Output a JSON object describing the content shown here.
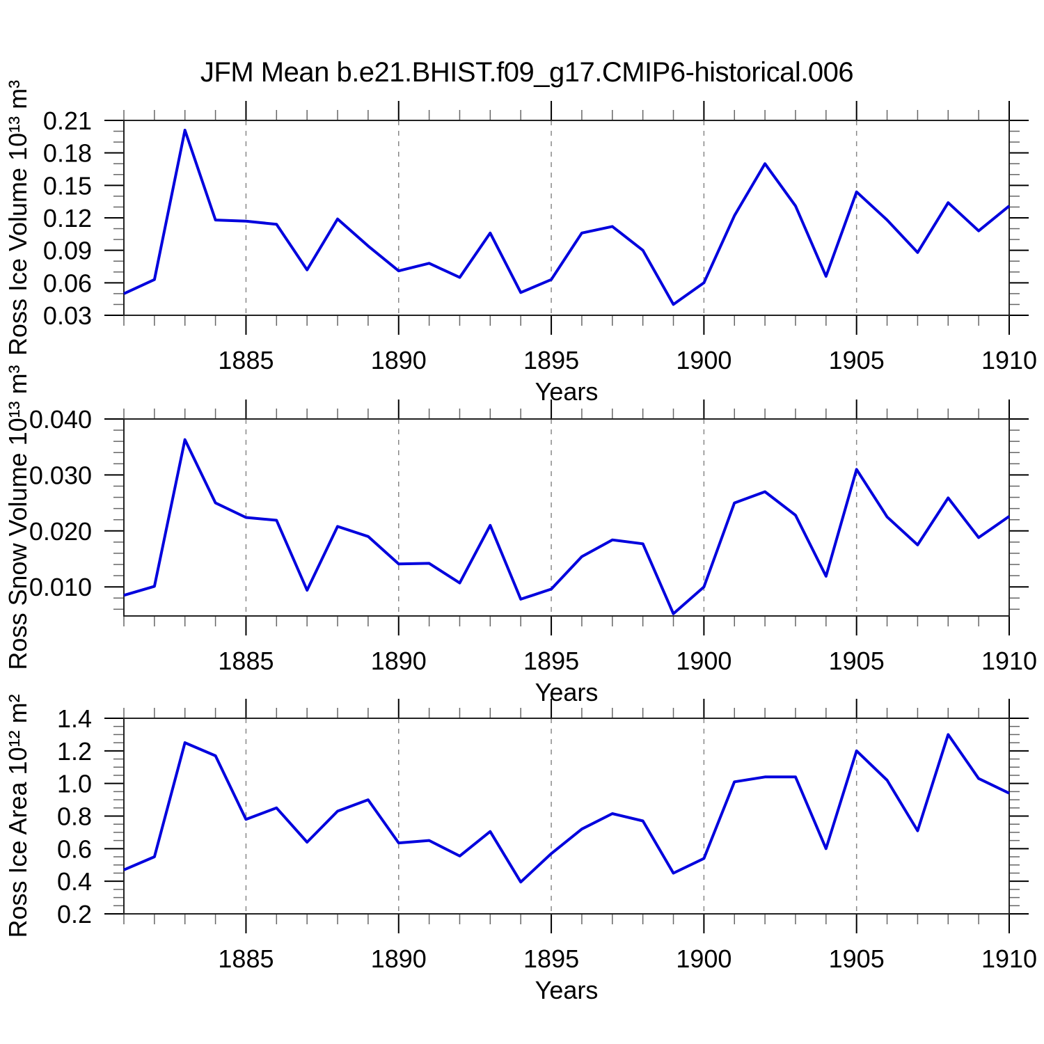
{
  "title": "JFM Mean b.e21.BHIST.f09_g17.CMIP6-historical.006",
  "style": {
    "line_color": "#0000dd",
    "axis_color": "#222222",
    "major_tick_color": "#000000",
    "minor_tick_color": "#666666",
    "grid_color": "#888888",
    "text_color": "#000000"
  },
  "chart_data": [
    {
      "type": "line",
      "name": "ross-ice-volume",
      "ylabel": "Ross Ice Volume 10¹³ m³",
      "xlabel": "Years",
      "legend": "none",
      "grid": "vertical-dashed",
      "x": [
        1881,
        1882,
        1883,
        1884,
        1885,
        1886,
        1887,
        1888,
        1889,
        1890,
        1891,
        1892,
        1893,
        1894,
        1895,
        1896,
        1897,
        1898,
        1899,
        1900,
        1901,
        1902,
        1903,
        1904,
        1905,
        1906,
        1907,
        1908,
        1909,
        1910
      ],
      "values": [
        0.05,
        0.063,
        0.201,
        0.118,
        0.117,
        0.114,
        0.072,
        0.119,
        0.094,
        0.071,
        0.078,
        0.065,
        0.106,
        0.051,
        0.063,
        0.106,
        0.112,
        0.09,
        0.04,
        0.06,
        0.122,
        0.17,
        0.131,
        0.066,
        0.144,
        0.118,
        0.088,
        0.134,
        0.108,
        0.131
      ],
      "xlim": [
        1881,
        1910
      ],
      "ylim": [
        0.03,
        0.21
      ],
      "yticks": [
        0.03,
        0.06,
        0.09,
        0.12,
        0.15,
        0.18,
        0.21
      ],
      "ytick_labels": [
        "0.03",
        "0.06",
        "0.09",
        "0.12",
        "0.15",
        "0.18",
        "0.21"
      ],
      "y_minor_step": 0.01,
      "xticks": [
        1885,
        1890,
        1895,
        1900,
        1905,
        1910
      ],
      "xtick_labels": [
        "1885",
        "1890",
        "1895",
        "1900",
        "1905",
        "1910"
      ],
      "x_minor_step": 1,
      "grid_years": [
        1885,
        1890,
        1895,
        1900,
        1905
      ]
    },
    {
      "type": "line",
      "name": "ross-snow-volume",
      "ylabel": "Ross Snow Volume 10¹³ m³",
      "xlabel": "Years",
      "legend": "none",
      "grid": "vertical-dashed",
      "x": [
        1881,
        1882,
        1883,
        1884,
        1885,
        1886,
        1887,
        1888,
        1889,
        1890,
        1891,
        1892,
        1893,
        1894,
        1895,
        1896,
        1897,
        1898,
        1899,
        1900,
        1901,
        1902,
        1903,
        1904,
        1905,
        1906,
        1907,
        1908,
        1909,
        1910
      ],
      "values": [
        0.0085,
        0.0101,
        0.0363,
        0.025,
        0.0224,
        0.0219,
        0.0094,
        0.0208,
        0.019,
        0.0141,
        0.0142,
        0.0107,
        0.021,
        0.0078,
        0.0096,
        0.0154,
        0.0184,
        0.0177,
        0.0052,
        0.01,
        0.025,
        0.027,
        0.0228,
        0.0119,
        0.031,
        0.0225,
        0.0175,
        0.0259,
        0.0188,
        0.0226
      ],
      "xlim": [
        1881,
        1910
      ],
      "ylim": [
        0.0048,
        0.04
      ],
      "yticks": [
        0.01,
        0.02,
        0.03,
        0.04
      ],
      "ytick_labels": [
        "0.010",
        "0.020",
        "0.030",
        "0.040"
      ],
      "y_minor_step": 0.002,
      "xticks": [
        1885,
        1890,
        1895,
        1900,
        1905,
        1910
      ],
      "xtick_labels": [
        "1885",
        "1890",
        "1895",
        "1900",
        "1905",
        "1910"
      ],
      "x_minor_step": 1,
      "grid_years": [
        1885,
        1890,
        1895,
        1900,
        1905
      ]
    },
    {
      "type": "line",
      "name": "ross-ice-area",
      "ylabel": "Ross Ice Area 10¹² m²",
      "xlabel": "Years",
      "legend": "none",
      "grid": "vertical-dashed",
      "x": [
        1881,
        1882,
        1883,
        1884,
        1885,
        1886,
        1887,
        1888,
        1889,
        1890,
        1891,
        1892,
        1893,
        1894,
        1895,
        1896,
        1897,
        1898,
        1899,
        1900,
        1901,
        1902,
        1903,
        1904,
        1905,
        1906,
        1907,
        1908,
        1909,
        1910
      ],
      "values": [
        0.47,
        0.55,
        1.25,
        1.17,
        0.78,
        0.85,
        0.64,
        0.83,
        0.9,
        0.635,
        0.65,
        0.555,
        0.705,
        0.395,
        0.57,
        0.72,
        0.815,
        0.77,
        0.45,
        0.54,
        1.01,
        1.04,
        1.04,
        0.6,
        1.2,
        1.02,
        0.71,
        1.3,
        1.03,
        0.94
      ],
      "xlim": [
        1881,
        1910
      ],
      "ylim": [
        0.2,
        1.4
      ],
      "yticks": [
        0.2,
        0.4,
        0.6,
        0.8,
        1.0,
        1.2,
        1.4
      ],
      "ytick_labels": [
        "0.2",
        "0.4",
        "0.6",
        "0.8",
        "1.0",
        "1.2",
        "1.4"
      ],
      "y_minor_step": 0.05,
      "xticks": [
        1885,
        1890,
        1895,
        1900,
        1905,
        1910
      ],
      "xtick_labels": [
        "1885",
        "1890",
        "1895",
        "1900",
        "1905",
        "1910"
      ],
      "x_minor_step": 1,
      "grid_years": [
        1885,
        1890,
        1895,
        1900,
        1905
      ]
    }
  ]
}
